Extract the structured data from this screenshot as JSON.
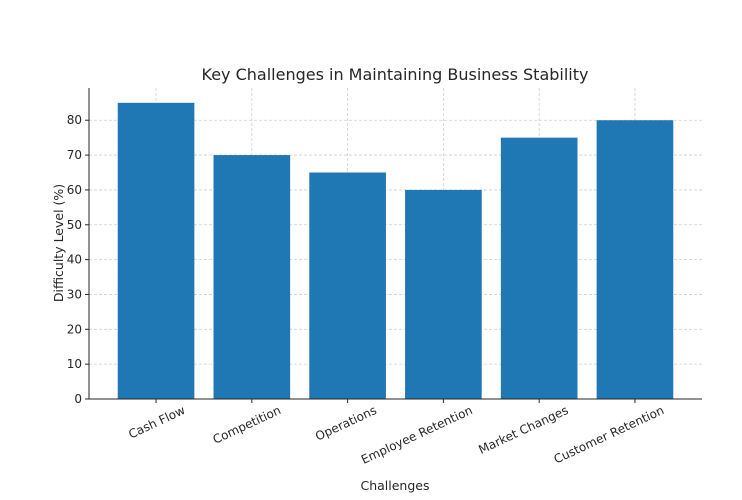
{
  "chart_data": {
    "type": "bar",
    "title": "Key Challenges in Maintaining Business Stability",
    "xlabel": "Challenges",
    "ylabel": "Difficulty Level (%)",
    "categories": [
      "Cash Flow",
      "Competition",
      "Operations",
      "Employee Retention",
      "Market Changes",
      "Customer Retention"
    ],
    "values": [
      85,
      70,
      65,
      60,
      75,
      80
    ],
    "ylim": [
      0,
      89.25
    ],
    "yticks": [
      0,
      10,
      20,
      30,
      40,
      50,
      60,
      70,
      80
    ],
    "grid": true,
    "bar_color": "#1f77b4"
  }
}
